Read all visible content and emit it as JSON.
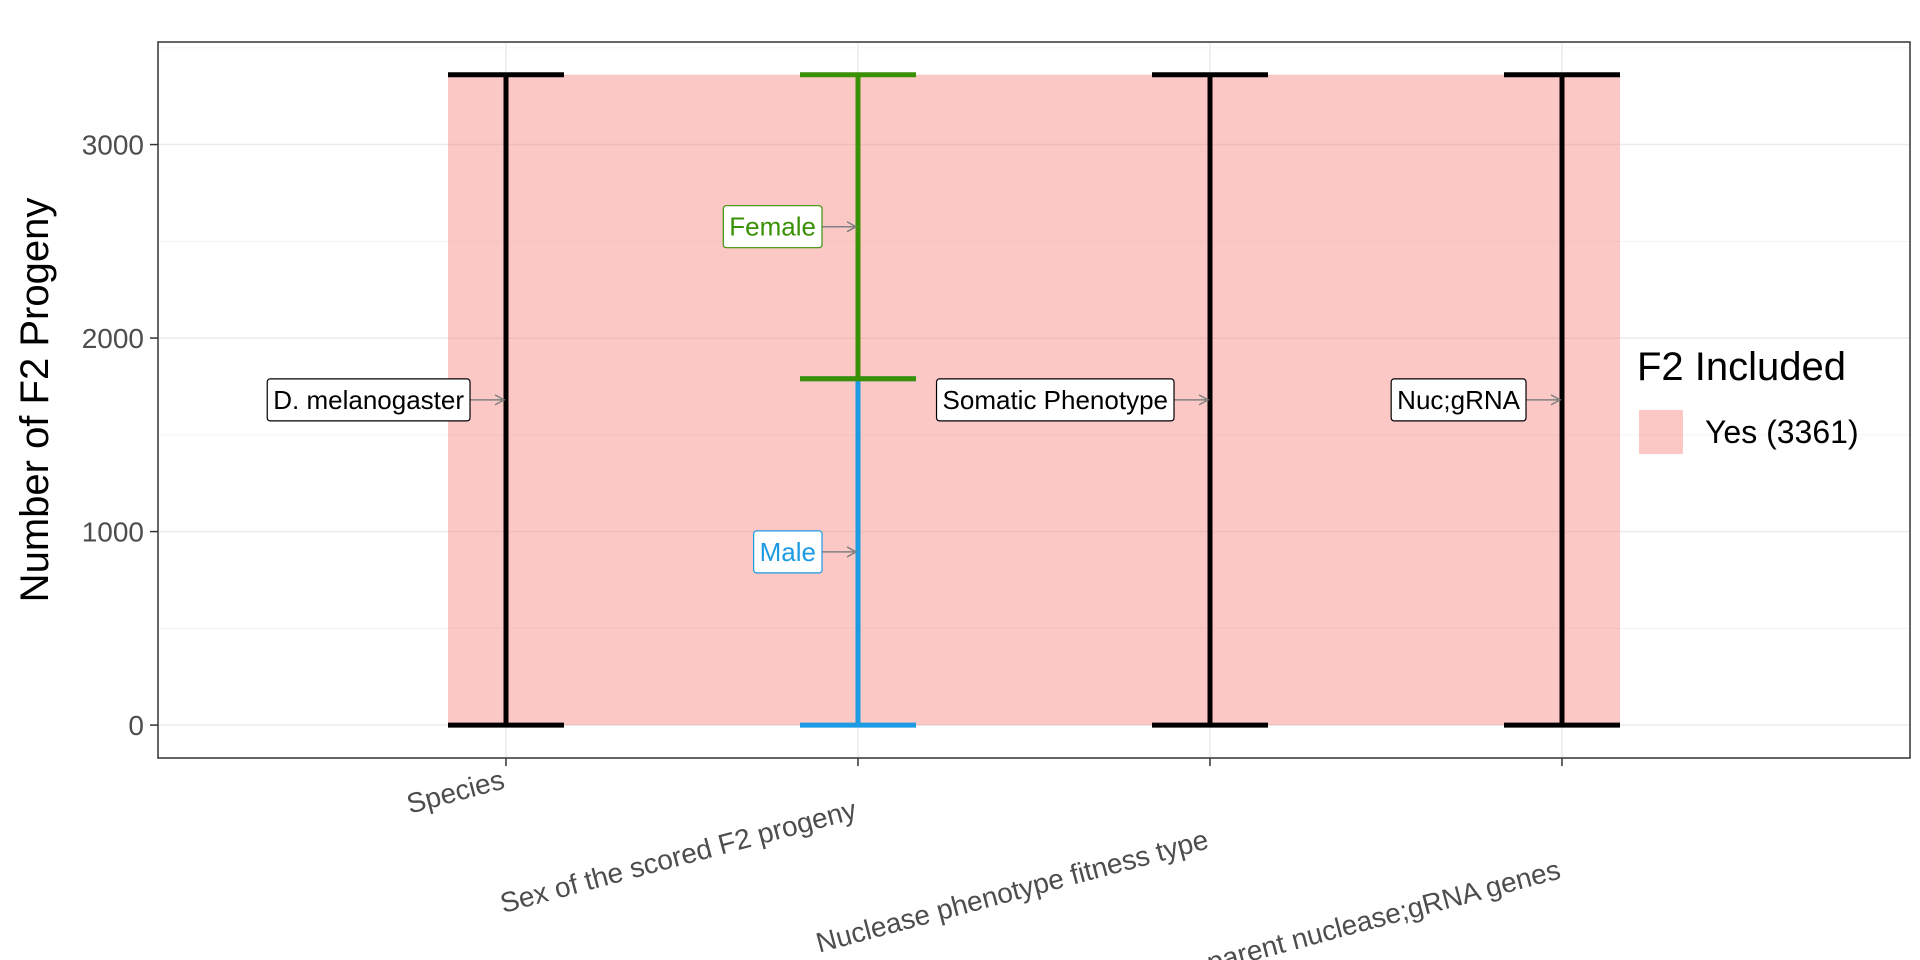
{
  "chart_data": {
    "type": "alluvial",
    "ylabel": "Number of F2 Progeny",
    "xlabel": "",
    "ylim": [
      -170,
      3530
    ],
    "y_ticks": [
      0,
      1000,
      2000,
      3000
    ],
    "grid": true,
    "axes": [
      "Species",
      "Sex of the scored F2 progeny",
      "Nuclease phenotype fitness type",
      "Drive parent nuclease;gRNA genes"
    ],
    "strata": [
      {
        "axis": 0,
        "label": "D. melanogaster",
        "from": 0,
        "to": 3361,
        "color": "#000000"
      },
      {
        "axis": 1,
        "label": "Male",
        "from": 0,
        "to": 1790,
        "color": "#1c9be3"
      },
      {
        "axis": 1,
        "label": "Female",
        "from": 1790,
        "to": 3361,
        "color": "#3a9106"
      },
      {
        "axis": 2,
        "label": "Somatic Phenotype",
        "from": 0,
        "to": 3361,
        "color": "#000000"
      },
      {
        "axis": 3,
        "label": "Nuc;gRNA",
        "from": 0,
        "to": 3361,
        "color": "#000000"
      }
    ],
    "flow": {
      "from": 0,
      "to": 3361,
      "color": "#f8766d",
      "opacity": 0.4
    },
    "legend": {
      "title": "F2 Included",
      "items": [
        {
          "label": "Yes (3361)",
          "color": "#f8766d"
        }
      ],
      "position": "right"
    }
  }
}
